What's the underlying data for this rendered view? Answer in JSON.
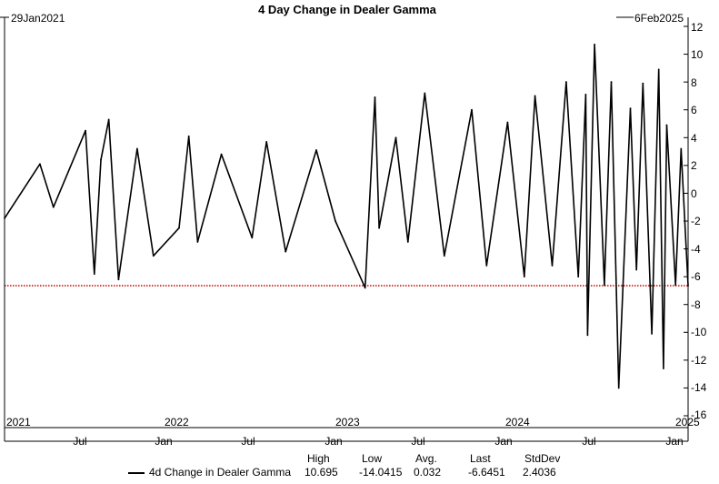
{
  "chart_data": {
    "type": "line",
    "title": "4 Day Change in Dealer Gamma",
    "start_label": "29Jan2021",
    "end_label": "6Feb2025",
    "xlabel": "",
    "ylabel": "",
    "ylim": [
      -16,
      12
    ],
    "y_ticks": [
      "12",
      "10",
      "8",
      "6",
      "4",
      "2",
      "0",
      "-2",
      "-4",
      "-6",
      "-8",
      "-10",
      "-12",
      "-14",
      "-16"
    ],
    "x_year_labels": [
      "2021",
      "2022",
      "2023",
      "2024",
      "2025"
    ],
    "x_month_labels": [
      "Jul",
      "Jan",
      "Jul",
      "Jan",
      "Jul",
      "Jan",
      "Jul",
      "Jan"
    ],
    "grid": false,
    "reference_line": {
      "value": -6.6451,
      "color": "#cc0000",
      "style": "dotted"
    },
    "series": [
      {
        "name": "4d Change in Dealer Gamma",
        "color": "#000000",
        "x": [
          "2021-01-29",
          "2021-04-15",
          "2021-05-14",
          "2021-07-22",
          "2021-08-10",
          "2021-08-24",
          "2021-09-10",
          "2021-10-01",
          "2021-11-10",
          "2021-12-15",
          "2022-02-08",
          "2022-03-01",
          "2022-03-20",
          "2022-05-10",
          "2022-07-15",
          "2022-08-15",
          "2022-09-25",
          "2022-11-30",
          "2023-01-10",
          "2023-03-15",
          "2023-04-05",
          "2023-04-14",
          "2023-05-20",
          "2023-06-15",
          "2023-07-21",
          "2023-09-01",
          "2023-10-30",
          "2023-12-01",
          "2024-01-15",
          "2024-02-20",
          "2024-03-14",
          "2024-04-20",
          "2024-05-20",
          "2024-06-15",
          "2024-07-01",
          "2024-07-05",
          "2024-07-20",
          "2024-08-10",
          "2024-08-25",
          "2024-09-10",
          "2024-10-05",
          "2024-10-18",
          "2024-11-01",
          "2024-11-20",
          "2024-12-05",
          "2024-12-15",
          "2024-12-22",
          "2025-01-10",
          "2025-01-22",
          "2025-02-06"
        ],
        "values": [
          -1.8,
          2.1,
          -1.0,
          4.5,
          -5.8,
          2.4,
          5.3,
          -6.2,
          3.2,
          -4.5,
          -2.5,
          4.1,
          -3.5,
          2.8,
          -3.2,
          3.7,
          -4.2,
          3.1,
          -2.0,
          -6.8,
          6.9,
          -2.5,
          4.0,
          -3.5,
          7.2,
          -4.5,
          6.0,
          -5.2,
          5.1,
          -6.0,
          7.0,
          -5.2,
          8.0,
          -6.0,
          7.1,
          -10.2,
          10.7,
          -6.6,
          8.0,
          -14.0,
          6.1,
          -5.5,
          7.9,
          -10.1,
          8.9,
          -12.6,
          4.9,
          -6.6,
          3.2,
          -6.6451
        ]
      }
    ],
    "stats": {
      "headers": [
        "High",
        "Low",
        "Avg.",
        "Last",
        "StdDev"
      ],
      "values": [
        "10.695",
        "-14.0415",
        "0.032",
        "-6.6451",
        "2.4036"
      ]
    }
  }
}
